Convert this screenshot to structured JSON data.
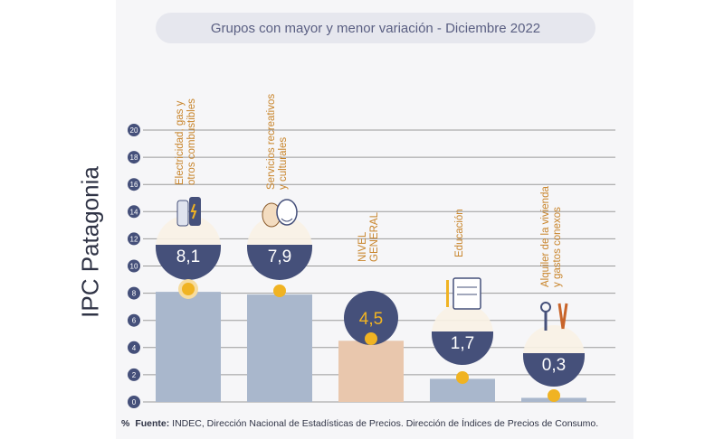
{
  "page": {
    "title": "Grupos con mayor y menor variación - Diciembre 2022",
    "ylabel": "IPC Patagonia",
    "footer_unit": "%",
    "footer_bold": "Fuente:",
    "footer_text": " INDEC, Dirección Nacional de Estadísticas de Precios. Dirección de Índices de Precios de Consumo."
  },
  "chart_data": {
    "type": "bar",
    "title": "Grupos con mayor y menor variación - Diciembre 2022",
    "ylabel": "IPC Patagonia",
    "xlabel": "",
    "ylim": [
      0,
      20
    ],
    "yticks": [
      "0",
      "2",
      "4",
      "6",
      "8",
      "10",
      "12",
      "14",
      "16",
      "18",
      "20"
    ],
    "grid": true,
    "categories": [
      [
        "Electricidad, gas y",
        "otros combustibles"
      ],
      [
        "Servicios recreativos",
        "y culturales"
      ],
      [
        "NIVEL",
        "GENERAL"
      ],
      [
        "Educación"
      ],
      [
        "Alquiler de la vivienda",
        "y gastos conexos"
      ]
    ],
    "values": [
      8.1,
      7.9,
      4.5,
      1.7,
      0.3
    ],
    "value_labels": [
      "8,1",
      "7,9",
      "4,5",
      "1,7",
      "0,3"
    ],
    "icons": [
      "gas-cylinder-icon",
      "theater-masks-icon",
      "",
      "notebook-icon",
      "keys-tools-icon"
    ],
    "colors": {
      "bar": "#a9b7cc",
      "bar_general": "#e9c7ad",
      "badge": "#45507a",
      "dot": "#f0b323",
      "grid": "#9a9a9a",
      "axis_dot": "#45507a",
      "category_text": "#c8842a"
    }
  }
}
